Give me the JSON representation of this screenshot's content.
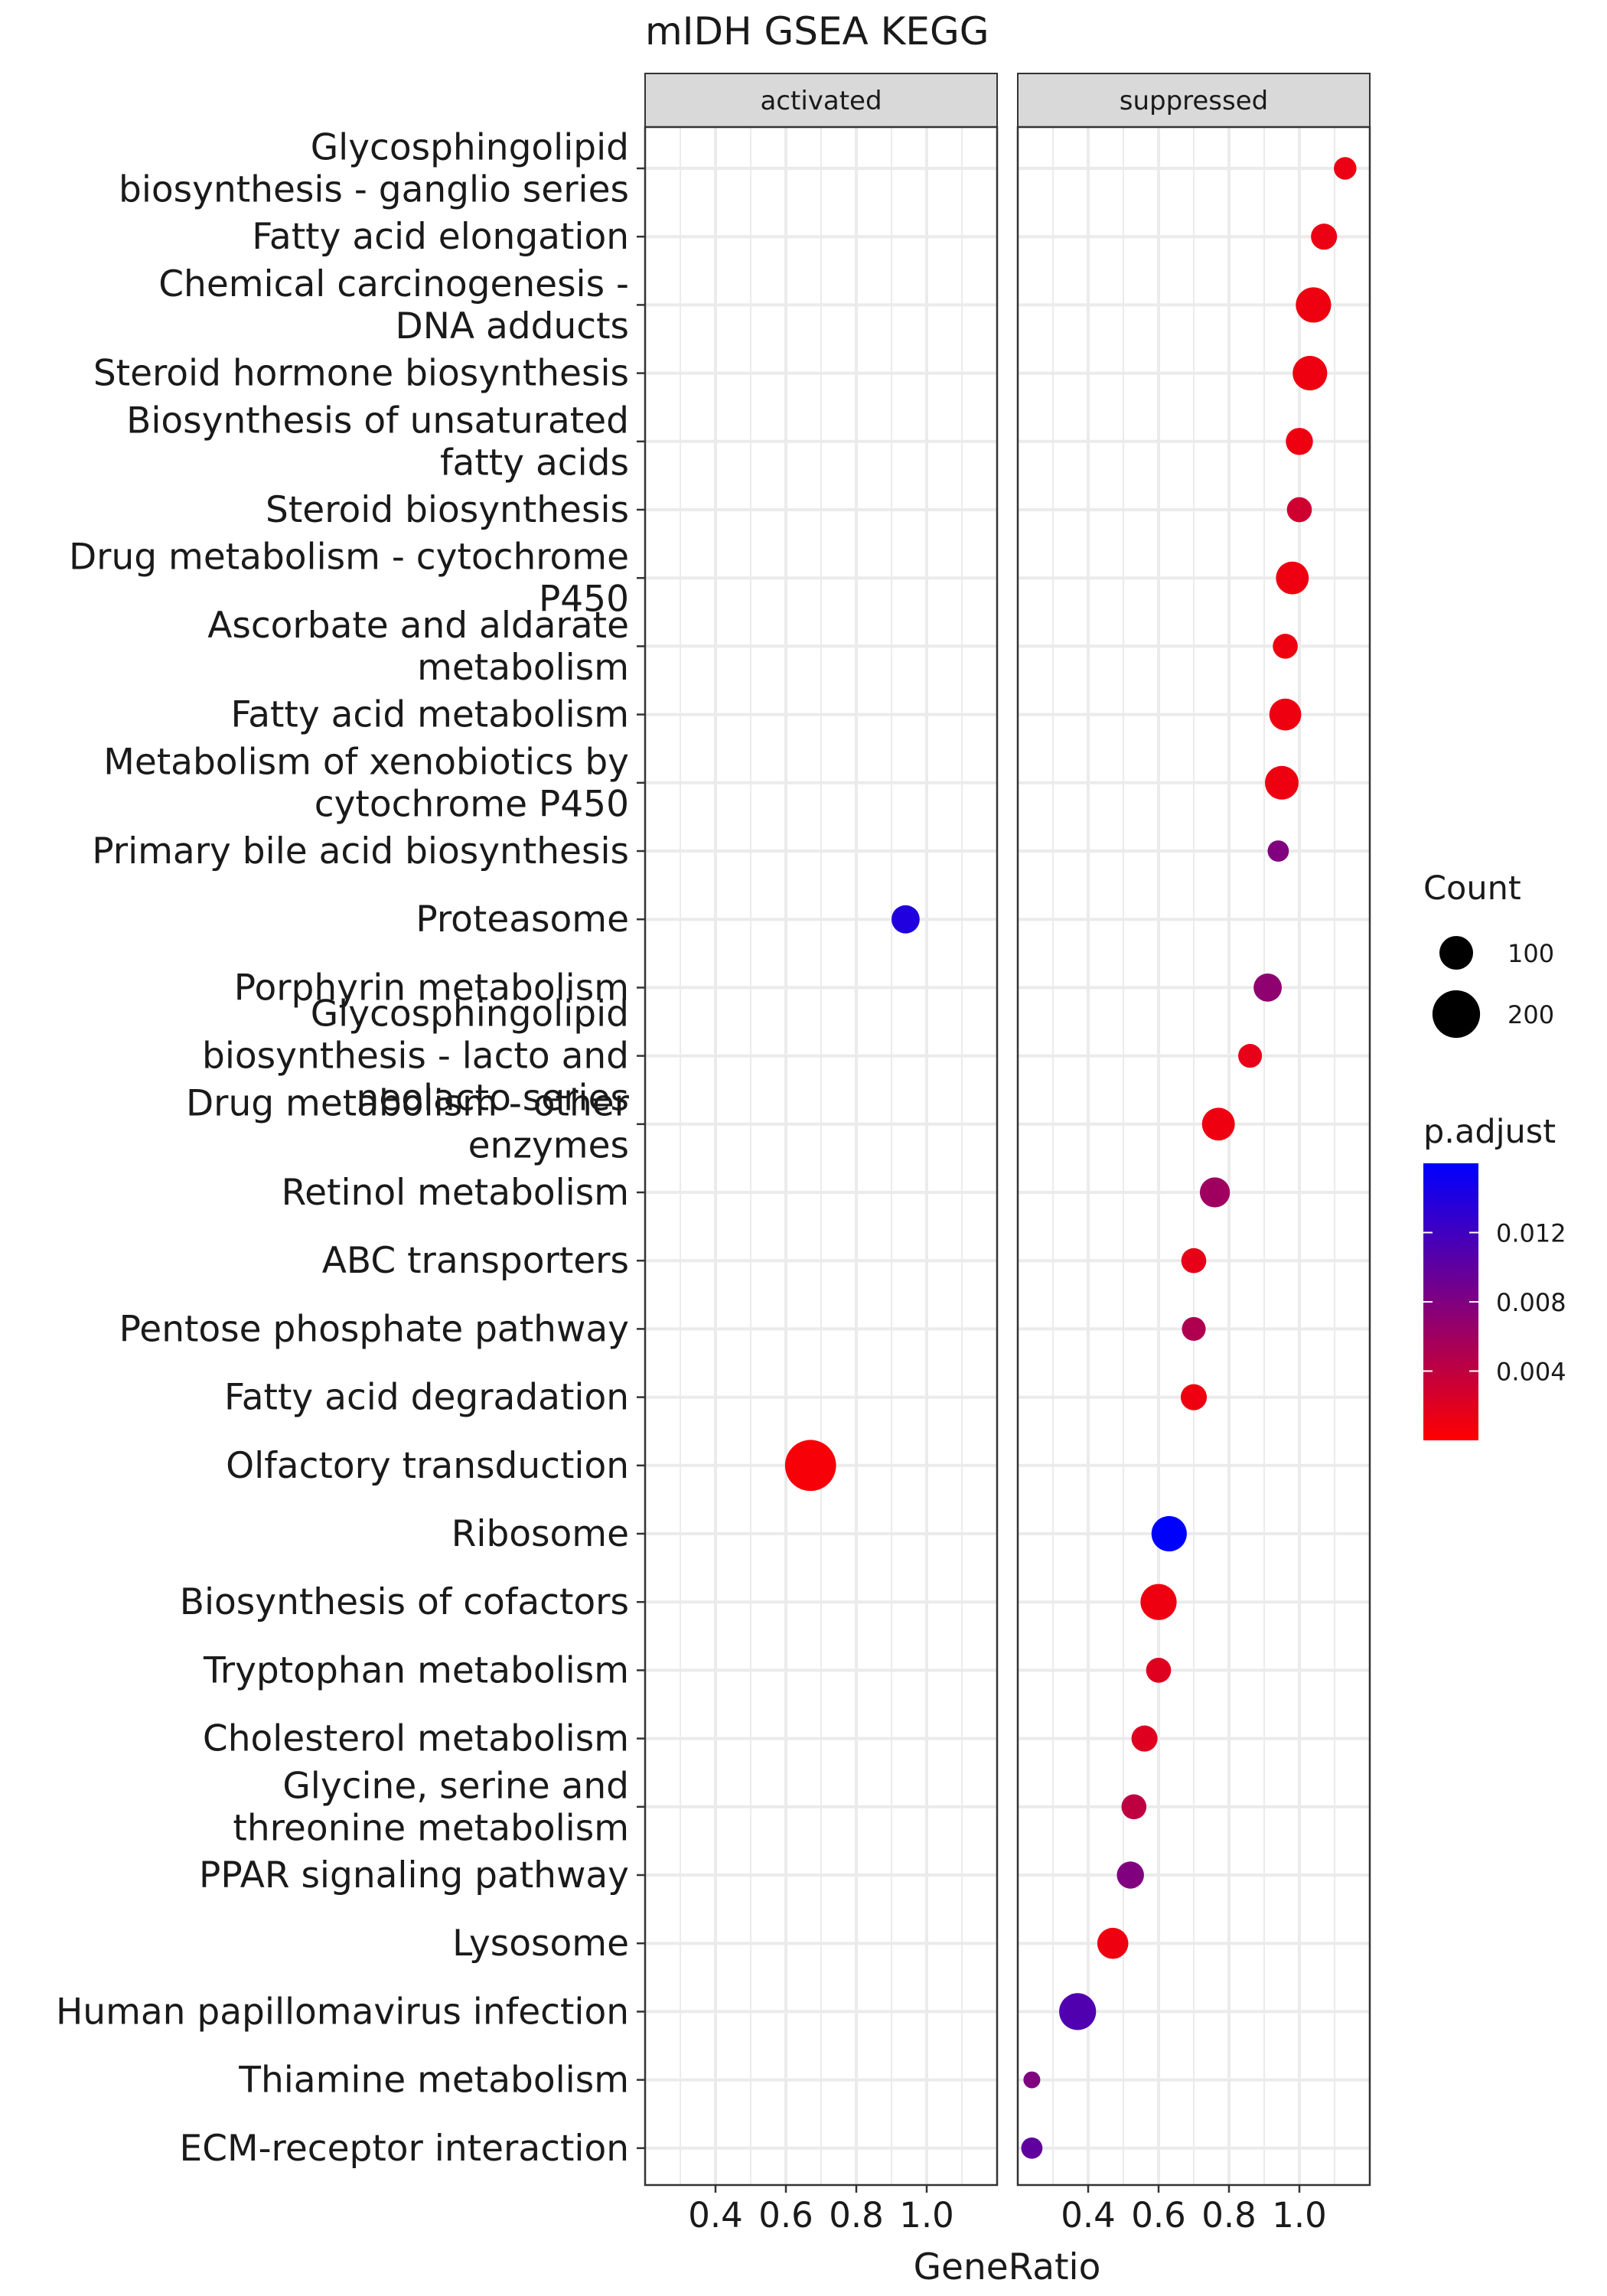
{
  "chart_data": {
    "type": "scatter",
    "title": "mIDH GSEA KEGG",
    "xlabel": "GeneRatio",
    "ylabel": "",
    "xlim": [
      0.2,
      1.2
    ],
    "xticks": [
      "0.4",
      "0.6",
      "0.8",
      "1.0"
    ],
    "xtick_values": [
      0.4,
      0.6,
      0.8,
      1.0
    ],
    "grid": true,
    "facets": [
      "activated",
      "suppressed"
    ],
    "categories": [
      [
        "Glycosphingolipid",
        "biosynthesis - ganglio series"
      ],
      [
        "Fatty acid elongation"
      ],
      [
        "Chemical carcinogenesis -",
        "DNA adducts"
      ],
      [
        "Steroid hormone biosynthesis"
      ],
      [
        "Biosynthesis of unsaturated",
        "fatty acids"
      ],
      [
        "Steroid biosynthesis"
      ],
      [
        "Drug metabolism - cytochrome",
        "P450"
      ],
      [
        "Ascorbate and aldarate",
        "metabolism"
      ],
      [
        "Fatty acid metabolism"
      ],
      [
        "Metabolism of xenobiotics by",
        "cytochrome P450"
      ],
      [
        "Primary bile acid biosynthesis"
      ],
      [
        "Proteasome"
      ],
      [
        "Porphyrin metabolism"
      ],
      [
        "Glycosphingolipid",
        "biosynthesis - lacto and",
        "neolacto series"
      ],
      [
        "Drug metabolism - other",
        "enzymes"
      ],
      [
        "Retinol metabolism"
      ],
      [
        "ABC transporters"
      ],
      [
        "Pentose phosphate pathway"
      ],
      [
        "Fatty acid degradation"
      ],
      [
        "Olfactory transduction"
      ],
      [
        "Ribosome"
      ],
      [
        "Biosynthesis of cofactors"
      ],
      [
        "Tryptophan metabolism"
      ],
      [
        "Cholesterol metabolism"
      ],
      [
        "Glycine, serine and",
        "threonine metabolism"
      ],
      [
        "PPAR signaling pathway"
      ],
      [
        "Lysosome"
      ],
      [
        "Human papillomavirus infection"
      ],
      [
        "Thiamine metabolism"
      ],
      [
        "ECM-receptor interaction"
      ]
    ],
    "points": [
      {
        "facet": "suppressed",
        "row": 0,
        "x": 1.13,
        "count": 45,
        "p_adjust": 0.0012
      },
      {
        "facet": "suppressed",
        "row": 1,
        "x": 1.07,
        "count": 60,
        "p_adjust": 0.0012
      },
      {
        "facet": "suppressed",
        "row": 2,
        "x": 1.04,
        "count": 110,
        "p_adjust": 0.001
      },
      {
        "facet": "suppressed",
        "row": 3,
        "x": 1.03,
        "count": 105,
        "p_adjust": 0.001
      },
      {
        "facet": "suppressed",
        "row": 4,
        "x": 1.0,
        "count": 65,
        "p_adjust": 0.001
      },
      {
        "facet": "suppressed",
        "row": 5,
        "x": 1.0,
        "count": 55,
        "p_adjust": 0.003
      },
      {
        "facet": "suppressed",
        "row": 6,
        "x": 0.98,
        "count": 95,
        "p_adjust": 0.001
      },
      {
        "facet": "suppressed",
        "row": 7,
        "x": 0.96,
        "count": 55,
        "p_adjust": 0.001
      },
      {
        "facet": "suppressed",
        "row": 8,
        "x": 0.96,
        "count": 90,
        "p_adjust": 0.001
      },
      {
        "facet": "suppressed",
        "row": 9,
        "x": 0.95,
        "count": 100,
        "p_adjust": 0.001
      },
      {
        "facet": "suppressed",
        "row": 10,
        "x": 0.94,
        "count": 40,
        "p_adjust": 0.008
      },
      {
        "facet": "activated",
        "row": 11,
        "x": 0.94,
        "count": 70,
        "p_adjust": 0.014
      },
      {
        "facet": "suppressed",
        "row": 12,
        "x": 0.91,
        "count": 70,
        "p_adjust": 0.007
      },
      {
        "facet": "suppressed",
        "row": 13,
        "x": 0.86,
        "count": 50,
        "p_adjust": 0.0015
      },
      {
        "facet": "suppressed",
        "row": 14,
        "x": 0.77,
        "count": 95,
        "p_adjust": 0.001
      },
      {
        "facet": "suppressed",
        "row": 15,
        "x": 0.76,
        "count": 80,
        "p_adjust": 0.006
      },
      {
        "facet": "suppressed",
        "row": 16,
        "x": 0.7,
        "count": 55,
        "p_adjust": 0.0015
      },
      {
        "facet": "suppressed",
        "row": 17,
        "x": 0.7,
        "count": 50,
        "p_adjust": 0.005
      },
      {
        "facet": "suppressed",
        "row": 18,
        "x": 0.7,
        "count": 60,
        "p_adjust": 0.001
      },
      {
        "facet": "activated",
        "row": 19,
        "x": 0.67,
        "count": 230,
        "p_adjust": 0.0005
      },
      {
        "facet": "suppressed",
        "row": 20,
        "x": 0.63,
        "count": 110,
        "p_adjust": 0.016
      },
      {
        "facet": "suppressed",
        "row": 21,
        "x": 0.6,
        "count": 115,
        "p_adjust": 0.001
      },
      {
        "facet": "suppressed",
        "row": 22,
        "x": 0.6,
        "count": 55,
        "p_adjust": 0.002
      },
      {
        "facet": "suppressed",
        "row": 23,
        "x": 0.56,
        "count": 60,
        "p_adjust": 0.002
      },
      {
        "facet": "suppressed",
        "row": 24,
        "x": 0.53,
        "count": 55,
        "p_adjust": 0.004
      },
      {
        "facet": "suppressed",
        "row": 25,
        "x": 0.52,
        "count": 65,
        "p_adjust": 0.008
      },
      {
        "facet": "suppressed",
        "row": 26,
        "x": 0.47,
        "count": 85,
        "p_adjust": 0.001
      },
      {
        "facet": "suppressed",
        "row": 27,
        "x": 0.37,
        "count": 120,
        "p_adjust": 0.011
      },
      {
        "facet": "suppressed",
        "row": 28,
        "x": 0.24,
        "count": 25,
        "p_adjust": 0.008
      },
      {
        "facet": "suppressed",
        "row": 29,
        "x": 0.24,
        "count": 40,
        "p_adjust": 0.01
      }
    ],
    "size_legend": {
      "title": "Count",
      "values": [
        100,
        200
      ],
      "labels": [
        "100",
        "200"
      ]
    },
    "color_legend": {
      "title": "p.adjust",
      "min": 0.0,
      "max": 0.016,
      "ticks": [
        0.004,
        0.008,
        0.012
      ],
      "labels": [
        "0.004",
        "0.008",
        "0.012"
      ],
      "low_color": "#FF0000",
      "high_color": "#0000FF"
    },
    "colors": {
      "panel_border": "#333333",
      "strip_fill": "#D9D9D9",
      "grid": "#EBEBEB"
    }
  }
}
